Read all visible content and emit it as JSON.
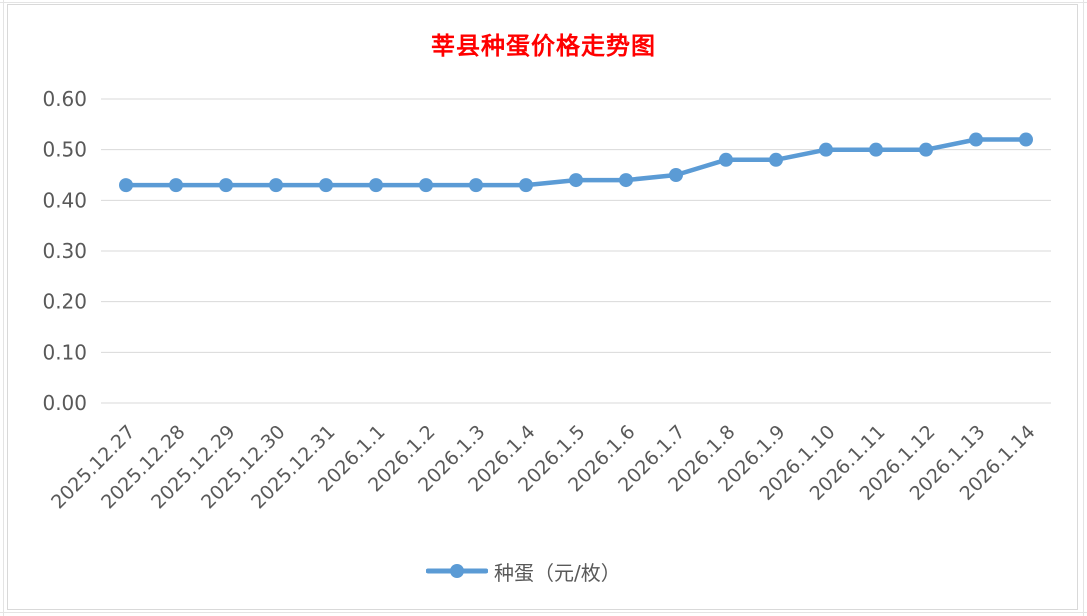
{
  "chart_data": {
    "type": "line",
    "title": "莘县种蛋价格走势图",
    "xlabel": "",
    "ylabel": "",
    "categories": [
      "2025.12.27",
      "2025.12.28",
      "2025.12.29",
      "2025.12.30",
      "2025.12.31",
      "2026.1.1",
      "2026.1.2",
      "2026.1.3",
      "2026.1.4",
      "2026.1.5",
      "2026.1.6",
      "2026.1.7",
      "2026.1.8",
      "2026.1.9",
      "2026.1.10",
      "2026.1.11",
      "2026.1.12",
      "2026.1.13",
      "2026.1.14"
    ],
    "series": [
      {
        "name": "种蛋（元/枚）",
        "color": "#5b9bd5",
        "values": [
          0.43,
          0.43,
          0.43,
          0.43,
          0.43,
          0.43,
          0.43,
          0.43,
          0.43,
          0.44,
          0.44,
          0.45,
          0.48,
          0.48,
          0.5,
          0.5,
          0.5,
          0.52,
          0.52
        ]
      }
    ],
    "ylim": [
      0,
      0.6
    ],
    "yticks": [
      "0.00",
      "0.10",
      "0.20",
      "0.30",
      "0.40",
      "0.50",
      "0.60"
    ],
    "grid": true,
    "legend_position": "bottom",
    "colors": {
      "title": "#ff0000",
      "gridline": "#d9d9d9",
      "tick_text": "#595959"
    }
  }
}
